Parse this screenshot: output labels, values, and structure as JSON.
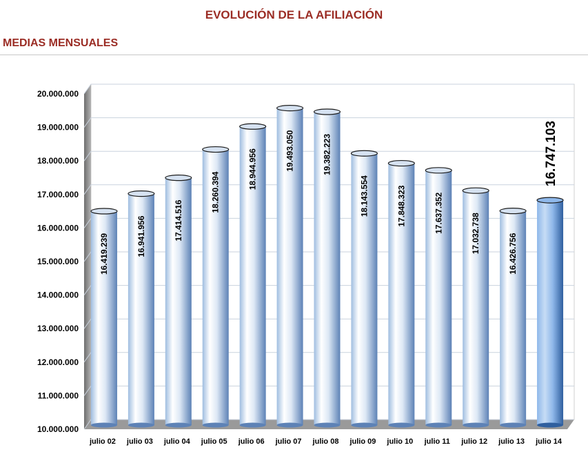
{
  "header": {
    "title": "EVOLUCIÓN DE LA AFILIACIÓN",
    "section": "MEDIAS MENSUALES"
  },
  "colors": {
    "title": "#9b2d25",
    "bar_light": "#dde8f5",
    "bar_mid": "#9fbde0",
    "bar_dark": "#5d82b6",
    "highlight_light": "#8fb8ea",
    "highlight_dark": "#2f5f9f",
    "gridline": "#c9d2dd",
    "wall": "#8f8f8f"
  },
  "chart_data": {
    "type": "bar",
    "title": "EVOLUCIÓN DE LA AFILIACIÓN",
    "subtitle": "MEDIAS MENSUALES",
    "categories": [
      "julio 02",
      "julio 03",
      "julio 04",
      "julio 05",
      "julio 06",
      "julio 07",
      "julio 08",
      "julio 09",
      "julio 10",
      "julio 11",
      "julio 12",
      "julio 13",
      "julio 14"
    ],
    "values": [
      16419239,
      16941956,
      17414516,
      18260394,
      18944956,
      19493050,
      19382223,
      18143554,
      17848323,
      17637352,
      17032738,
      16426756,
      16747103
    ],
    "value_labels": [
      "16.419.239",
      "16.941.956",
      "17.414.516",
      "18.260.394",
      "18.944.956",
      "19.493.050",
      "19.382.223",
      "18.143.554",
      "17.848.323",
      "17.637.352",
      "17.032.738",
      "16.426.756",
      "16.747.103"
    ],
    "highlight_index": 12,
    "ylim": [
      10000000,
      20000000
    ],
    "yticks": [
      "10.000.000",
      "11.000.000",
      "12.000.000",
      "13.000.000",
      "14.000.000",
      "15.000.000",
      "16.000.000",
      "17.000.000",
      "18.000.000",
      "19.000.000",
      "20.000.000"
    ],
    "grid": true,
    "legend": "none",
    "xlabel": "",
    "ylabel": ""
  }
}
